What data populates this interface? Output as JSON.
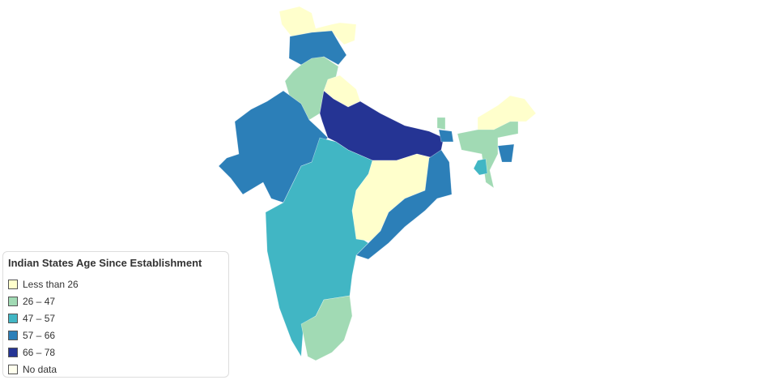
{
  "legend": {
    "title": "Indian States Age Since Establishment",
    "items": [
      {
        "label": "Less than 26",
        "color": "#ffffcc"
      },
      {
        "label": "26 – 47",
        "color": "#a1dab4"
      },
      {
        "label": "47 – 57",
        "color": "#41b6c4"
      },
      {
        "label": "57 – 66",
        "color": "#2c7fb8"
      },
      {
        "label": "66 – 78",
        "color": "#253494"
      },
      {
        "label": "No data",
        "color": "#ffffee"
      }
    ]
  }
}
